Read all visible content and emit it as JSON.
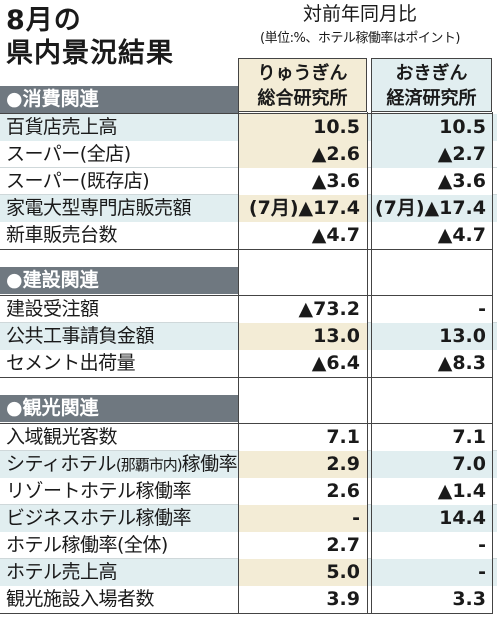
{
  "title_line1": "8月の",
  "title_line2": "県内景況結果",
  "subtitle": "対前年同月比",
  "note": "(単位:%、ホテル稼働率はポイント)",
  "columns": [
    {
      "line1": "りゅうぎん",
      "line2": "総合研究所"
    },
    {
      "line1": "おきぎん",
      "line2": "経済研究所"
    }
  ],
  "sections": [
    {
      "label": "●消費関連"
    },
    {
      "label": "●建設関連"
    },
    {
      "label": "●観光関連"
    }
  ],
  "rows": [
    {
      "label": "百貨店売上高",
      "a": "10.5",
      "b": "10.5"
    },
    {
      "label": "スーパー(全店)",
      "a": "▲2.6",
      "b": "▲2.7"
    },
    {
      "label": "スーパー(既存店)",
      "a": "▲3.6",
      "b": "▲3.6"
    },
    {
      "label": "家電大型専門店販売額",
      "a": "(7月)▲17.4",
      "b": "(7月)▲17.4"
    },
    {
      "label": "新車販売台数",
      "a": "▲4.7",
      "b": "▲4.7"
    },
    {
      "label": "建設受注額",
      "a": "▲73.2",
      "b": "-"
    },
    {
      "label": "公共工事請負金額",
      "a": "13.0",
      "b": "13.0"
    },
    {
      "label": "セメント出荷量",
      "a": "▲6.4",
      "b": "▲8.3"
    },
    {
      "label": "入域観光客数",
      "a": "7.1",
      "b": "7.1"
    },
    {
      "label_main": "シティホテル",
      "label_small": "(那覇市内)",
      "label_tail": "稼働率",
      "a": "2.9",
      "b": "7.0"
    },
    {
      "label": "リゾートホテル稼働率",
      "a": "2.6",
      "b": "▲1.4"
    },
    {
      "label": "ビジネスホテル稼働率",
      "a": "-",
      "b": "14.4"
    },
    {
      "label": "ホテル稼働率(全体)",
      "a": "2.7",
      "b": "-"
    },
    {
      "label": "ホテル売上高",
      "a": "5.0",
      "b": "-"
    },
    {
      "label": "観光施設入場者数",
      "a": "3.9",
      "b": "3.3"
    }
  ]
}
